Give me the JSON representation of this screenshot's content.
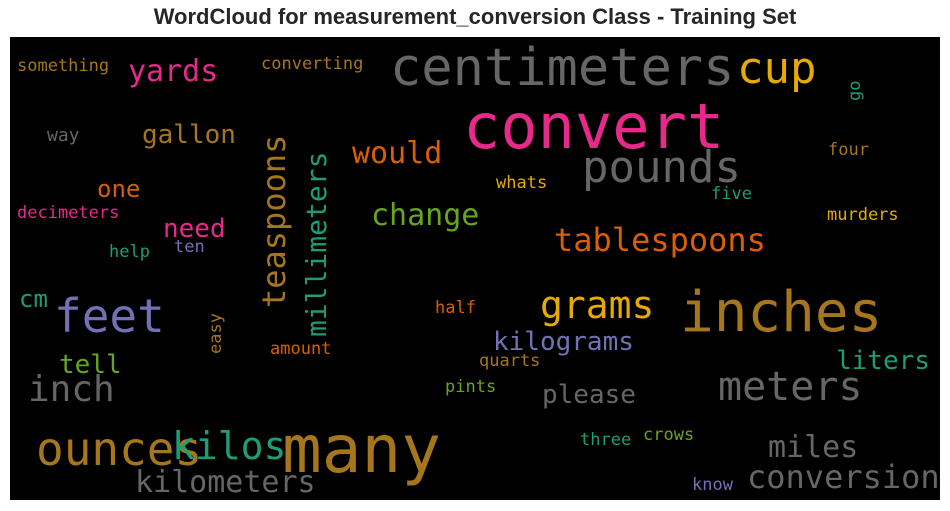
{
  "title": "WordCloud for measurement_conversion Class - Training Set",
  "words": {
    "convert": {
      "text": "convert",
      "color": "#e7298a"
    },
    "many": {
      "text": "many",
      "color": "#a6761d"
    },
    "centimeters": {
      "text": "centimeters",
      "color": "#666666"
    },
    "inches": {
      "text": "inches",
      "color": "#a6761d"
    },
    "pounds": {
      "text": "pounds",
      "color": "#666666"
    },
    "feet": {
      "text": "feet",
      "color": "#7570b3"
    },
    "ounces": {
      "text": "ounces",
      "color": "#a6761d"
    },
    "meters": {
      "text": "meters",
      "color": "#666666"
    },
    "cup": {
      "text": "cup",
      "color": "#e6ab02"
    },
    "kilos": {
      "text": "kilos",
      "color": "#1b9e77"
    },
    "teaspoons": {
      "text": "teaspoons",
      "color": "#a6761d"
    },
    "grams": {
      "text": "grams",
      "color": "#e6ab02"
    },
    "tablespoons": {
      "text": "tablespoons",
      "color": "#d95f02"
    },
    "millimeters": {
      "text": "millimeters",
      "color": "#1b9e77"
    },
    "conversion": {
      "text": "conversion",
      "color": "#666666"
    },
    "kilometers": {
      "text": "kilometers",
      "color": "#666666"
    },
    "miles": {
      "text": "miles",
      "color": "#666666"
    },
    "inch": {
      "text": "inch",
      "color": "#666666"
    },
    "yards": {
      "text": "yards",
      "color": "#e7298a"
    },
    "change": {
      "text": "change",
      "color": "#66a61e"
    },
    "would": {
      "text": "would",
      "color": "#d95f02"
    },
    "kilograms": {
      "text": "kilograms",
      "color": "#7570b3"
    },
    "gallon": {
      "text": "gallon",
      "color": "#a6761d"
    },
    "please": {
      "text": "please",
      "color": "#666666"
    },
    "liters": {
      "text": "liters",
      "color": "#1b9e77"
    },
    "need": {
      "text": "need",
      "color": "#e7298a"
    },
    "one": {
      "text": "one",
      "color": "#d95f02"
    },
    "tell": {
      "text": "tell",
      "color": "#66a61e"
    },
    "cm": {
      "text": "cm",
      "color": "#1b9e77"
    },
    "something": {
      "text": "something",
      "color": "#a6761d"
    },
    "converting": {
      "text": "converting",
      "color": "#a6761d"
    },
    "way": {
      "text": "way",
      "color": "#666666"
    },
    "decimeters": {
      "text": "decimeters",
      "color": "#e7298a"
    },
    "help": {
      "text": "help",
      "color": "#1b9e77"
    },
    "ten": {
      "text": "ten",
      "color": "#7570b3"
    },
    "easy": {
      "text": "easy",
      "color": "#a6761d"
    },
    "amount": {
      "text": "amount",
      "color": "#d95f02"
    },
    "half": {
      "text": "half",
      "color": "#d95f02"
    },
    "quarts": {
      "text": "quarts",
      "color": "#a6761d"
    },
    "pints": {
      "text": "pints",
      "color": "#66a61e"
    },
    "three": {
      "text": "three",
      "color": "#1b9e77"
    },
    "crows": {
      "text": "crows",
      "color": "#66a61e"
    },
    "know": {
      "text": "know",
      "color": "#7570b3"
    },
    "whats": {
      "text": "whats",
      "color": "#e6ab02"
    },
    "five": {
      "text": "five",
      "color": "#1b9e77"
    },
    "four": {
      "text": "four",
      "color": "#a6761d"
    },
    "murders": {
      "text": "murders",
      "color": "#e6ab02"
    },
    "go": {
      "text": "go",
      "color": "#1b9e77"
    }
  }
}
